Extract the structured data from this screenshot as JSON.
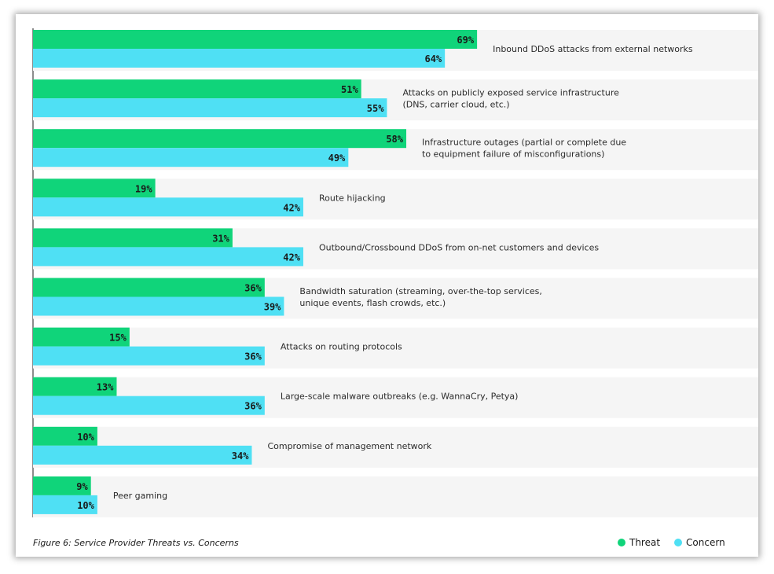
{
  "chart_data": {
    "type": "bar",
    "orientation": "horizontal",
    "unit": "%",
    "categories": [
      "Inbound DDoS attacks from external networks",
      "Attacks on publicly exposed service infrastructure\n(DNS, carrier cloud, etc.)",
      "Infrastructure outages (partial or complete due\nto equipment failure of misconfigurations)",
      "Route hijacking",
      "Outbound/Crossbound DDoS from on-net customers and devices",
      "Bandwidth saturation (streaming, over-the-top services,\nunique events, flash crowds, etc.)",
      "Attacks on routing protocols",
      "Large-scale malware outbreaks (e.g. WannaCry, Petya)",
      "Compromise of management network",
      "Peer gaming"
    ],
    "series": [
      {
        "name": "Threat",
        "color": "#10d47a",
        "values": [
          69,
          51,
          58,
          19,
          31,
          36,
          15,
          13,
          10,
          9
        ]
      },
      {
        "name": "Concern",
        "color": "#4fe0f4",
        "values": [
          64,
          55,
          49,
          42,
          42,
          39,
          36,
          36,
          34,
          10
        ]
      }
    ],
    "value_labels": {
      "threat": [
        "69%",
        "51%",
        "58%",
        "19%",
        "31%",
        "36%",
        "15%",
        "13%",
        "10%",
        "9%"
      ],
      "concern": [
        "64%",
        "55%",
        "49%",
        "42%",
        "42%",
        "39%",
        "36%",
        "36%",
        "34%",
        "10%"
      ]
    },
    "xlim": [
      0,
      100
    ],
    "grid": false,
    "legend_position": "bottom-right"
  },
  "caption": "Figure 6: Service Provider Threats vs. Concerns",
  "legend": {
    "threat": "Threat",
    "concern": "Concern"
  },
  "colors": {
    "threat": "#10d47a",
    "concern": "#4fe0f4",
    "row_background": "#f5f5f5"
  }
}
